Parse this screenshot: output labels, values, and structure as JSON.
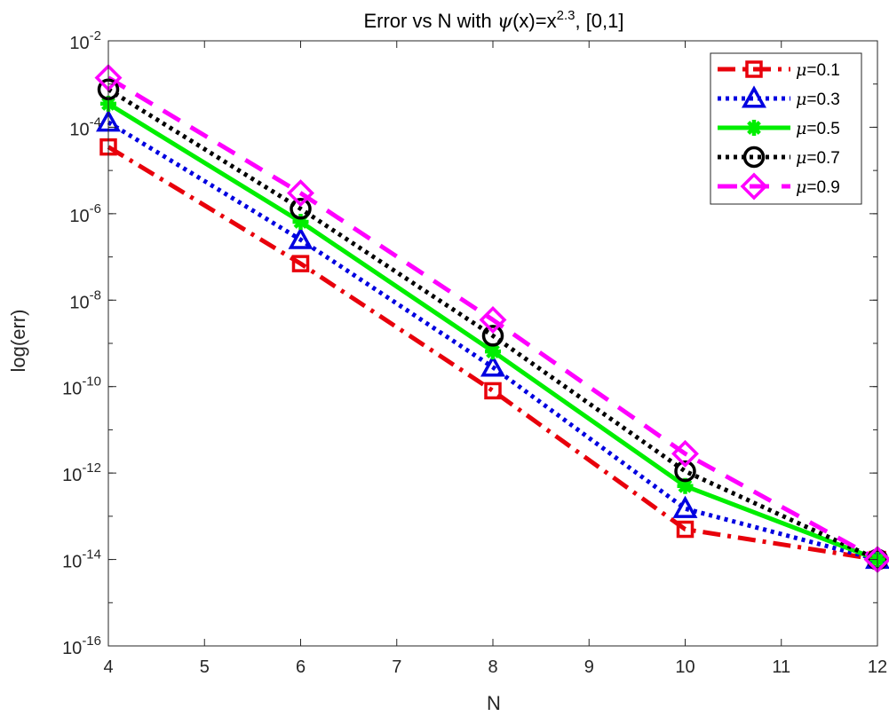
{
  "chart_data": {
    "type": "line",
    "title": "Error vs N with ψ(x)=x2.3, [0,1]",
    "title_parts": {
      "prefix": "Error vs N with ",
      "psi": "ψ",
      "middle": "(x)=x",
      "exponent": "2.3",
      "suffix": ", [0,1]"
    },
    "xlabel": "N",
    "ylabel": "log(err)",
    "xlim": [
      4,
      12
    ],
    "ylim": [
      1e-16,
      0.01
    ],
    "yscale": "log",
    "grid": false,
    "legend_position": "top-right",
    "x": [
      4,
      6,
      8,
      10,
      12
    ],
    "x_ticks": [
      "4",
      "5",
      "6",
      "7",
      "8",
      "9",
      "10",
      "11",
      "12"
    ],
    "y_ticks": [
      {
        "base": "10",
        "exp": "-2"
      },
      {
        "base": "10",
        "exp": "-4"
      },
      {
        "base": "10",
        "exp": "-6"
      },
      {
        "base": "10",
        "exp": "-8"
      },
      {
        "base": "10",
        "exp": "-10"
      },
      {
        "base": "10",
        "exp": "-12"
      },
      {
        "base": "10",
        "exp": "-14"
      },
      {
        "base": "10",
        "exp": "-16"
      }
    ],
    "series": [
      {
        "name": "μ=0.1",
        "mu_symbol": "μ",
        "mu_value": "=0.1",
        "color": "#e8000b",
        "line_style": "dash-dot",
        "marker": "square",
        "values": [
          3.5e-05,
          7e-08,
          8e-11,
          5e-14,
          1e-14
        ]
      },
      {
        "name": "μ=0.3",
        "mu_symbol": "μ",
        "mu_value": "=0.3",
        "color": "#0000e0",
        "line_style": "dotted",
        "marker": "triangle",
        "values": [
          0.00013,
          2.5e-07,
          2.8e-10,
          1.5e-13,
          1e-14
        ]
      },
      {
        "name": "μ=0.5",
        "mu_symbol": "μ",
        "mu_value": "=0.5",
        "color": "#00ee00",
        "line_style": "solid",
        "marker": "asterisk",
        "values": [
          0.00035,
          6.5e-07,
          6.5e-10,
          5e-13,
          1e-14
        ]
      },
      {
        "name": "μ=0.7",
        "mu_symbol": "μ",
        "mu_value": "=0.7",
        "color": "#000000",
        "line_style": "dotted",
        "marker": "circle",
        "values": [
          0.00075,
          1.3e-06,
          1.5e-09,
          1.1e-12,
          1e-14
        ]
      },
      {
        "name": "μ=0.9",
        "mu_symbol": "μ",
        "mu_value": "=0.9",
        "color": "#ff00ff",
        "line_style": "dashed",
        "marker": "diamond",
        "values": [
          0.0014,
          3e-06,
          3.5e-09,
          2.8e-12,
          1e-14
        ]
      }
    ]
  }
}
